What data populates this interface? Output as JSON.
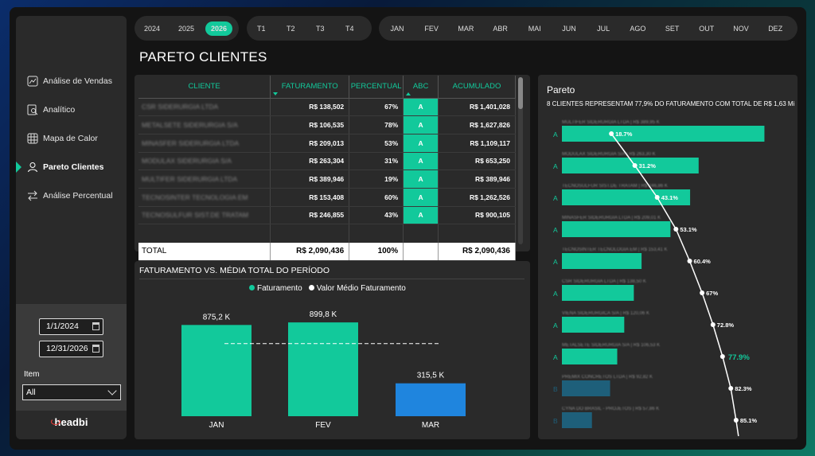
{
  "years": [
    "2024",
    "2025",
    "2026"
  ],
  "selected_year": "2026",
  "quarters": [
    "T1",
    "T2",
    "T3",
    "T4"
  ],
  "months": [
    "JAN",
    "FEV",
    "MAR",
    "ABR",
    "MAI",
    "JUN",
    "JUL",
    "AGO",
    "SET",
    "OUT",
    "NOV",
    "DEZ"
  ],
  "sidebar": {
    "items": [
      {
        "label": "Análise de Vendas",
        "icon": "line-chart-icon"
      },
      {
        "label": "Analítico",
        "icon": "search-doc-icon"
      },
      {
        "label": "Mapa de Calor",
        "icon": "grid-icon"
      },
      {
        "label": "Pareto Clientes",
        "icon": "user-icon"
      },
      {
        "label": "Análise Percentual",
        "icon": "arrows-icon"
      }
    ],
    "active_index": 3,
    "date_start": "1/1/2024",
    "date_end": "12/31/2026",
    "item_label": "Item",
    "item_value": "All",
    "logo": "headbi"
  },
  "page_title": "PARETO CLIENTES",
  "table": {
    "headers": [
      "CLIENTE",
      "FATURAMENTO",
      "PERCENTUAL",
      "ABC",
      "ACUMULADO"
    ],
    "rows": [
      {
        "cliente": "CSR SIDERURGIA LTDA",
        "faturamento": "R$ 138,502",
        "percentual": "67%",
        "abc": "A",
        "acumulado": "R$ 1,401,028"
      },
      {
        "cliente": "METALSETE SIDERURGIA S/A",
        "faturamento": "R$ 106,535",
        "percentual": "78%",
        "abc": "A",
        "acumulado": "R$ 1,627,826"
      },
      {
        "cliente": "MINASFER SIDERURGIA LTDA",
        "faturamento": "R$ 209,013",
        "percentual": "53%",
        "abc": "A",
        "acumulado": "R$ 1,109,117"
      },
      {
        "cliente": "MODULAX SIDERURGIA S/A",
        "faturamento": "R$ 263,304",
        "percentual": "31%",
        "abc": "A",
        "acumulado": "R$ 653,250"
      },
      {
        "cliente": "MULTIFER SIDERURGIA LTDA",
        "faturamento": "R$ 389,946",
        "percentual": "19%",
        "abc": "A",
        "acumulado": "R$ 389,946"
      },
      {
        "cliente": "TECNOSINTER TECNOLOGIA EM",
        "faturamento": "R$ 153,408",
        "percentual": "60%",
        "abc": "A",
        "acumulado": "R$ 1,262,526"
      },
      {
        "cliente": "TECNOSULFUR SIST.DE TRATAM",
        "faturamento": "R$ 246,855",
        "percentual": "43%",
        "abc": "A",
        "acumulado": "R$ 900,105"
      }
    ],
    "total": {
      "label": "TOTAL",
      "faturamento": "R$ 2,090,436",
      "percentual": "100%",
      "acumulado": "R$ 2,090,436"
    }
  },
  "bar_section_title": "FATURAMENTO VS. MÉDIA TOTAL DO PERÍODO",
  "legend": {
    "faturamento": "Faturamento",
    "media": "Valor Médio Faturamento"
  },
  "colors": {
    "accent": "#12c99b",
    "blue": "#1f85de",
    "b_class": "#1e5f7a"
  },
  "pareto_title": "Pareto",
  "pareto_subtitle": "8 CLIENTES REPRESENTAM 77,9% DO FATURAMENTO COM TOTAL DE R$ 1,63 Mi",
  "chart_data": [
    {
      "type": "bar",
      "title": "FATURAMENTO VS. MÉDIA TOTAL DO PERÍODO",
      "categories": [
        "JAN",
        "FEV",
        "MAR"
      ],
      "series": [
        {
          "name": "Faturamento",
          "values": [
            875.2,
            899.8,
            315.5
          ],
          "labels": [
            "875,2 K",
            "899,8 K",
            "315,5 K"
          ]
        },
        {
          "name": "Valor Médio Faturamento",
          "values": [
            696.8,
            696.8,
            696.8
          ]
        }
      ],
      "ylim": [
        0,
        1000
      ]
    },
    {
      "type": "bar",
      "title": "Pareto",
      "orientation": "horizontal",
      "categories": [
        "MULTIFER SIDERURGIA LTDA | R$ 389,95 K",
        "MODULAX SIDERURGIA S/A | R$ 263,30 K",
        "TECNOSULFUR SIST.DE TRATAM | R$ 246,86 K",
        "MINASFER SIDERURGIA LTDA | R$ 209,01 K",
        "TECNOSINTER TECNOLOGIA EM | R$ 153,41 K",
        "CSR SIDERURGIA LTDA | R$ 138,50 K",
        "VIENA SIDERURGICA S/A | R$ 120,06 K",
        "METALSETE SIDERURGIA S/A | R$ 106,53 K",
        "PREMIX CONCRETOS LTDA | R$ 92,82 K",
        "CYNA DO BRASIL - PROJETOS | R$ 57,86 K"
      ],
      "classes": [
        "A",
        "A",
        "A",
        "A",
        "A",
        "A",
        "A",
        "A",
        "B",
        "B"
      ],
      "series": [
        {
          "name": "Faturamento",
          "values": [
            389.95,
            263.3,
            246.86,
            209.01,
            153.41,
            138.5,
            120.06,
            106.53,
            92.82,
            57.86
          ]
        },
        {
          "name": "Acumulado %",
          "values": [
            18.7,
            31.2,
            43.1,
            53.1,
            60.4,
            67.0,
            72.8,
            77.9,
            82.3,
            85.1
          ],
          "labels": [
            "18.7%",
            "31.2%",
            "43.1%",
            "53.1%",
            "60.4%",
            "67%",
            "72.8%",
            "77.9%",
            "82.3%",
            "85.1%"
          ]
        }
      ],
      "xlim": [
        0,
        400
      ],
      "pct_lim": [
        0,
        100
      ]
    }
  ]
}
